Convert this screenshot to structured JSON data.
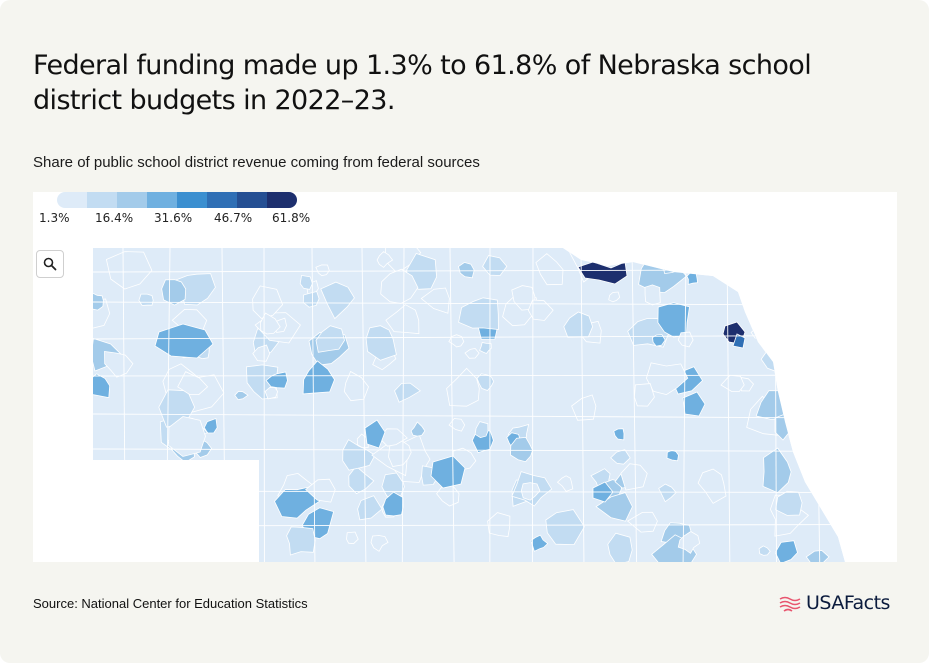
{
  "title": "Federal funding made up 1.3% to 61.8% of Nebraska school district budgets in 2022–23.",
  "subtitle": "Share of public school district revenue coming from federal sources",
  "legend": {
    "stops": [
      "1.3%",
      "16.4%",
      "31.6%",
      "46.7%",
      "61.8%"
    ],
    "colors": [
      "#deebf8",
      "#c2dcf2",
      "#a3cbea",
      "#6fb0e0",
      "#3b8fd0",
      "#2f6fb5",
      "#254f93",
      "#1d2f6e"
    ]
  },
  "map": {
    "zoom_icon": "search-icon",
    "state": "Nebraska",
    "base_color": "#deebf8",
    "boundary_color": "#ffffff",
    "district_shares_pct": [
      2,
      4,
      8,
      12,
      16,
      20,
      24,
      28,
      33,
      40,
      55,
      61.8
    ]
  },
  "footer": {
    "source": "Source: National Center for Education Statistics",
    "logo_text": "USAFacts",
    "logo_icon": "usafacts-flag-icon",
    "logo_color": "#e8556f"
  }
}
